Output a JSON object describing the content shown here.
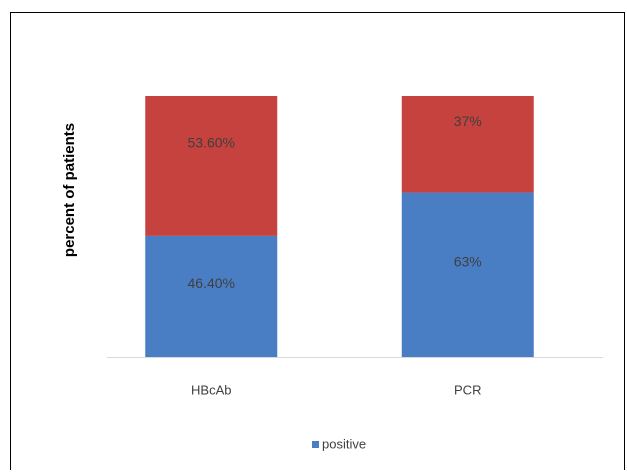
{
  "chart_data": {
    "type": "stacked_bar",
    "ylabel": "percent of patients",
    "categories": [
      "HBcAb",
      "PCR"
    ],
    "series": [
      {
        "name": "positive",
        "color": "#4a7ec4",
        "values": [
          46.4,
          63
        ],
        "value_labels": [
          "46.40%",
          "63%"
        ]
      },
      {
        "color": "#c5423f",
        "values": [
          53.6,
          37
        ],
        "value_labels": [
          "53.60%",
          "37%"
        ]
      }
    ],
    "legend": "bottom"
  }
}
